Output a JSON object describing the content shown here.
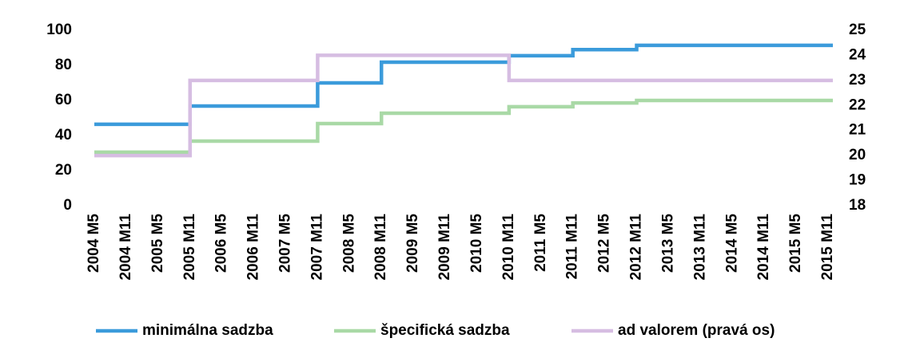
{
  "chart_data": {
    "type": "line",
    "step": true,
    "categories": [
      "2004 M5",
      "2004 M11",
      "2005 M5",
      "2005 M11",
      "2006 M5",
      "2006 M11",
      "2007 M5",
      "2007 M11",
      "2008 M5",
      "2008 M11",
      "2009 M5",
      "2009 M11",
      "2010 M5",
      "2010 M11",
      "2011 M5",
      "2011 M11",
      "2012 M5",
      "2012 M11",
      "2013 M5",
      "2013 M11",
      "2014 M5",
      "2014 M11",
      "2015 M5",
      "2015 M11"
    ],
    "series": [
      {
        "name": "minimálna sadzba",
        "color": "#3b9bdb",
        "values": [
          46.4,
          46.4,
          46.4,
          56.8,
          56.8,
          56.8,
          56.8,
          70,
          70,
          81.8,
          81.8,
          81.8,
          81.8,
          85.5,
          85.5,
          89,
          89,
          91.4,
          91.4,
          91.4,
          91.4,
          91.4,
          91.4,
          91.4
        ]
      },
      {
        "name": "špecifická sadzba",
        "color": "#a9d9a6",
        "values": [
          30.5,
          30.5,
          30.5,
          36.8,
          36.8,
          36.8,
          36.8,
          46.8,
          46.8,
          52.7,
          52.7,
          52.7,
          52.7,
          56.4,
          56.4,
          58.6,
          58.6,
          60,
          60,
          60,
          60,
          60,
          60,
          60
        ]
      },
      {
        "name": "ad valorem (pravá os)",
        "color": "#d6bde2",
        "axis": "y2",
        "values": [
          20,
          20,
          20,
          23,
          23,
          23,
          23,
          24,
          24,
          24,
          24,
          24,
          24,
          23,
          23,
          23,
          23,
          23,
          23,
          23,
          23,
          23,
          23,
          23
        ]
      }
    ],
    "ylim": [
      0,
      100
    ],
    "yticks": [
      0,
      20,
      40,
      60,
      80,
      100
    ],
    "y2lim": [
      18,
      25
    ],
    "y2ticks": [
      18,
      19,
      20,
      21,
      22,
      23,
      24,
      25
    ],
    "legend": "bottom"
  }
}
